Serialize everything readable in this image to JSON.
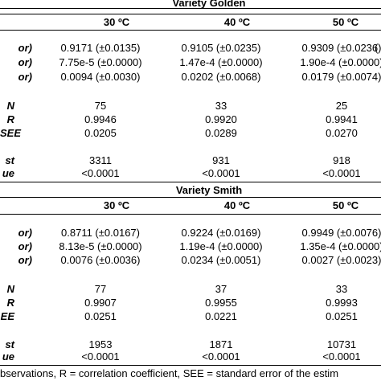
{
  "golden": {
    "title": "Variety Golden",
    "temps": [
      "30 ºC",
      "40 ºC",
      "50 ºC"
    ],
    "param_labels": [
      "or)",
      "or)",
      "or)"
    ],
    "params": [
      [
        "0.9171 (±0.0135)",
        "0.9105 (±0.0235)",
        "0.9309 (±0.0236)"
      ],
      [
        "7.75e-5 (±0.0000)",
        "1.47e-4 (±0.0000)",
        "1.90e-4 (±0.0000)"
      ],
      [
        "0.0094 (±0.0030)",
        "0.0202 (±0.0068)",
        "0.0179 (±0.0074)"
      ]
    ],
    "stat_labels": [
      "N",
      "R",
      "SEE"
    ],
    "stats": [
      [
        "75",
        "33",
        "25"
      ],
      [
        "0.9946",
        "0.9920",
        "0.9941"
      ],
      [
        "0.0205",
        "0.0289",
        "0.0270"
      ]
    ],
    "test_labels": [
      "st",
      "ue"
    ],
    "tests": [
      [
        "3311",
        "931",
        "918"
      ],
      [
        "<0.0001",
        "<0.0001",
        "<0.0001"
      ]
    ]
  },
  "smith": {
    "title": "Variety Smith",
    "temps": [
      "30 ºC",
      "40 ºC",
      "50 ºC"
    ],
    "param_labels": [
      "or)",
      "or)",
      "or)"
    ],
    "params": [
      [
        "0.8711 (±0.0167)",
        "0.9224 (±0.0169)",
        "0.9949 (±0.0076)"
      ],
      [
        "8.13e-5 (±0.0000)",
        "1.19e-4 (±0.0000)",
        "1.35e-4 (±0.0000)"
      ],
      [
        "0.0076 (±0.0036)",
        "0.0234 (±0.0051)",
        "0.0027 (±0.0023)"
      ]
    ],
    "stat_labels": [
      "N",
      "R",
      "EE"
    ],
    "stats": [
      [
        "77",
        "37",
        "33"
      ],
      [
        "0.9907",
        "0.9955",
        "0.9993"
      ],
      [
        "0.0251",
        "0.0221",
        "0.0251"
      ]
    ],
    "test_labels": [
      "st",
      "ue"
    ],
    "tests": [
      [
        "1953",
        "1871",
        "10731"
      ],
      [
        "<0.0001",
        "<0.0001",
        "<0.0001"
      ]
    ]
  },
  "edge_fragment": "(",
  "footnote": "bservations, R = correlation coefficient, SEE = standard error of the estim"
}
